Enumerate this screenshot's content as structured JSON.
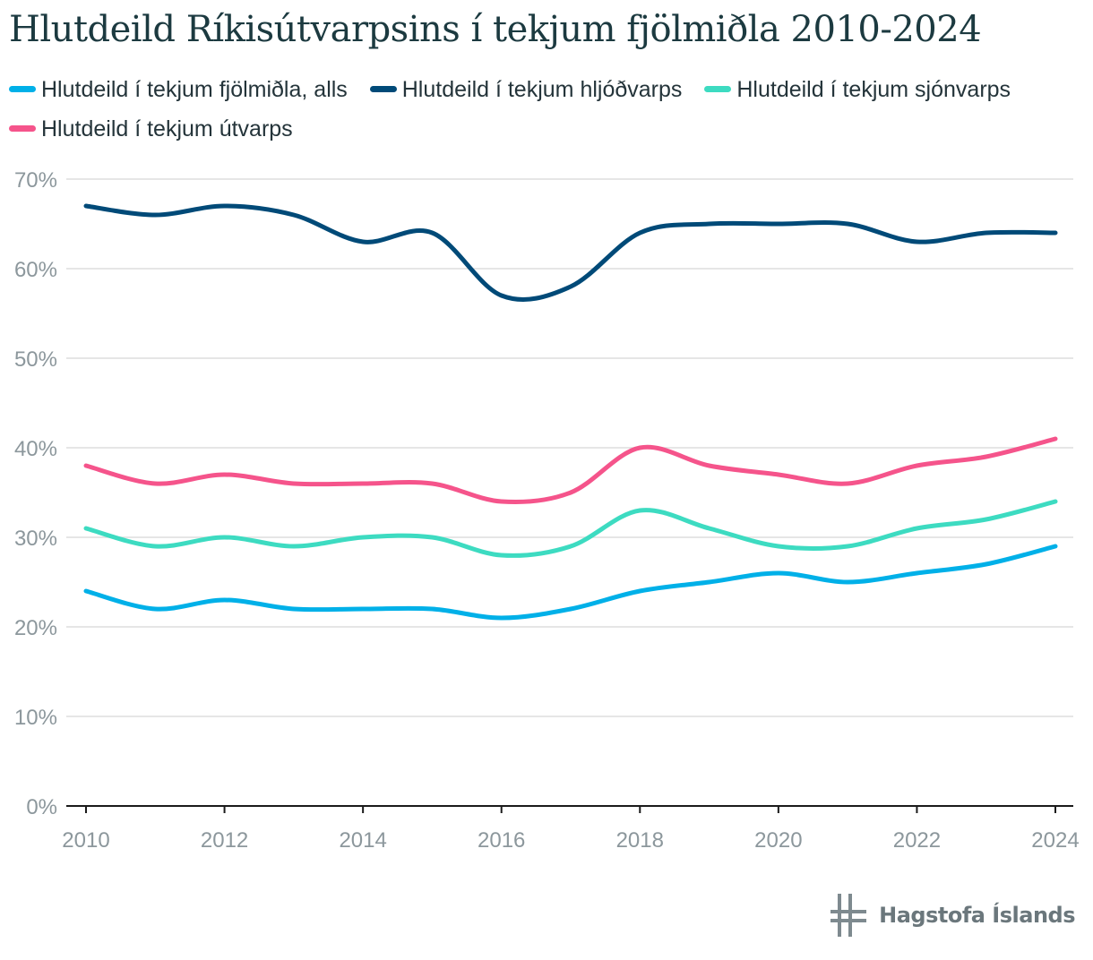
{
  "chart_data": {
    "type": "line",
    "title": "Hlutdeild Ríkisútvarpsins í tekjum fjölmiðla 2010-2024",
    "xlabel": "",
    "ylabel": "",
    "x": [
      2010,
      2011,
      2012,
      2013,
      2014,
      2015,
      2016,
      2017,
      2018,
      2019,
      2020,
      2021,
      2022,
      2023,
      2024
    ],
    "xticks": [
      "2010",
      "2012",
      "2014",
      "2016",
      "2018",
      "2020",
      "2022",
      "2024"
    ],
    "yticks": [
      "0%",
      "10%",
      "20%",
      "30%",
      "40%",
      "50%",
      "60%",
      "70%"
    ],
    "ylim": [
      0,
      70
    ],
    "grid": true,
    "legend_position": "top",
    "series": [
      {
        "name": "Hlutdeild í tekjum fjölmiðla, alls",
        "color": "#00b0e8",
        "values": [
          24,
          22,
          23,
          22,
          22,
          22,
          21,
          22,
          24,
          25,
          26,
          25,
          26,
          27,
          29
        ]
      },
      {
        "name": "Hlutdeild í tekjum hljóðvarps",
        "color": "#004a78",
        "values": [
          67,
          66,
          67,
          66,
          63,
          64,
          57,
          58,
          64,
          65,
          65,
          65,
          63,
          64,
          64
        ]
      },
      {
        "name": "Hlutdeild í tekjum sjónvarps",
        "color": "#3ddbc1",
        "values": [
          31,
          29,
          30,
          29,
          30,
          30,
          28,
          29,
          33,
          31,
          29,
          29,
          31,
          32,
          34
        ]
      },
      {
        "name": "Hlutdeild í tekjum útvarps",
        "color": "#f5548b",
        "values": [
          38,
          36,
          37,
          36,
          36,
          36,
          34,
          35,
          40,
          38,
          37,
          36,
          38,
          39,
          41
        ]
      }
    ]
  },
  "branding": {
    "logo_text": "Hagstofa Íslands",
    "logo_color": "#7e8a8f"
  }
}
